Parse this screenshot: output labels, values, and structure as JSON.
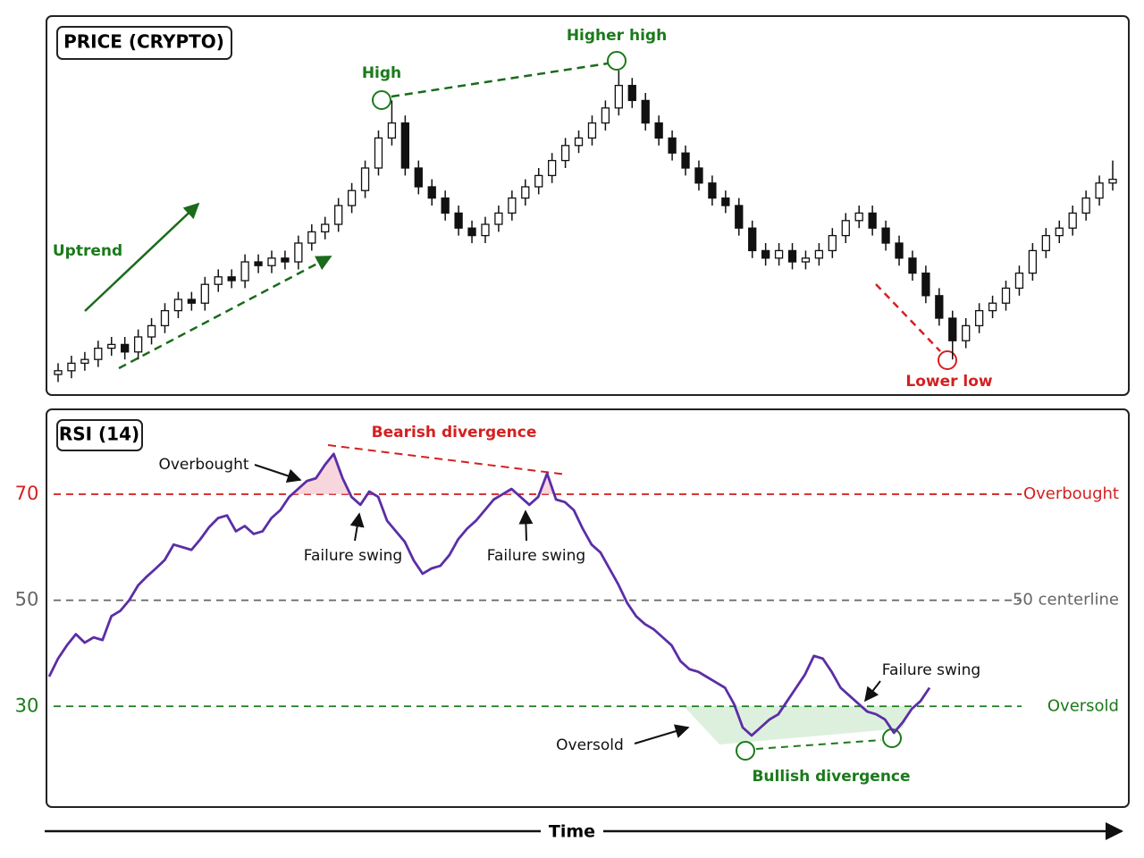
{
  "chart_data": [
    {
      "type": "candlestick",
      "title": "PRICE (CRYPTO)",
      "ylim": [
        0,
        100
      ],
      "up_color": "#ffffff",
      "down_color": "#111111",
      "open": [
        5,
        6,
        8,
        9,
        12,
        13,
        11,
        15,
        18,
        22,
        25,
        24,
        29,
        31,
        30,
        35,
        34,
        36,
        35,
        40,
        43,
        45,
        50,
        54,
        60,
        68,
        72,
        60,
        55,
        52,
        48,
        44,
        42,
        45,
        48,
        52,
        55,
        58,
        62,
        66,
        68,
        72,
        76,
        82,
        78,
        72,
        68,
        64,
        60,
        56,
        52,
        50,
        44,
        38,
        36,
        38,
        35,
        36,
        38,
        42,
        46,
        48,
        44,
        40,
        36,
        32,
        26,
        20,
        14,
        18,
        22,
        24,
        28,
        32,
        38,
        42,
        44,
        48,
        52,
        56
      ],
      "high": [
        8,
        10,
        11,
        14,
        15,
        15,
        17,
        20,
        24,
        27,
        27,
        31,
        33,
        33,
        37,
        37,
        38,
        38,
        42,
        45,
        47,
        52,
        56,
        62,
        70,
        78,
        74,
        62,
        57,
        54,
        50,
        46,
        47,
        50,
        54,
        57,
        60,
        64,
        68,
        70,
        74,
        78,
        86,
        84,
        80,
        74,
        70,
        66,
        62,
        58,
        54,
        52,
        46,
        40,
        40,
        40,
        38,
        40,
        44,
        48,
        50,
        50,
        46,
        42,
        38,
        34,
        28,
        22,
        20,
        24,
        26,
        30,
        34,
        40,
        44,
        46,
        50,
        54,
        58,
        62
      ],
      "low": [
        3,
        4,
        6,
        7,
        10,
        9,
        9,
        13,
        16,
        20,
        22,
        22,
        27,
        28,
        28,
        32,
        32,
        33,
        33,
        38,
        41,
        43,
        48,
        52,
        58,
        66,
        58,
        53,
        50,
        46,
        42,
        40,
        40,
        43,
        46,
        50,
        53,
        56,
        60,
        64,
        66,
        70,
        74,
        76,
        70,
        66,
        62,
        58,
        54,
        50,
        48,
        42,
        36,
        34,
        34,
        33,
        33,
        34,
        36,
        40,
        44,
        42,
        38,
        34,
        30,
        24,
        18,
        9,
        12,
        16,
        20,
        22,
        26,
        30,
        36,
        40,
        42,
        46,
        50,
        54
      ],
      "close": [
        6,
        8,
        9,
        12,
        13,
        11,
        15,
        18,
        22,
        25,
        24,
        29,
        31,
        30,
        35,
        34,
        36,
        35,
        40,
        43,
        45,
        50,
        54,
        60,
        68,
        72,
        60,
        55,
        52,
        48,
        44,
        42,
        45,
        48,
        52,
        55,
        58,
        62,
        66,
        68,
        72,
        76,
        82,
        78,
        72,
        68,
        64,
        60,
        56,
        52,
        50,
        44,
        38,
        36,
        38,
        35,
        36,
        38,
        42,
        46,
        48,
        44,
        40,
        36,
        32,
        26,
        20,
        14,
        18,
        22,
        24,
        28,
        32,
        38,
        42,
        44,
        48,
        52,
        56,
        57
      ],
      "annotations": {
        "high": "High",
        "higher_high": "Higher high",
        "uptrend": "Uptrend",
        "lower_low": "Lower low"
      }
    },
    {
      "type": "line",
      "title": "RSI (14)",
      "color": "#5b2ea6",
      "ylim": [
        11,
        86
      ],
      "yticks": [
        30,
        50,
        70
      ],
      "tick_colors": [
        "#1a7a1a",
        "#666666",
        "#d42020"
      ],
      "line_labels": [
        "Oversold",
        "50 centerline",
        "Overbought"
      ],
      "values": [
        35.6,
        39,
        41.5,
        43.6,
        42,
        43,
        42.5,
        47,
        48,
        50,
        52.8,
        54.5,
        56,
        57.6,
        60.5,
        60,
        59.5,
        61.5,
        63.8,
        65.5,
        66,
        63,
        64,
        62.5,
        63,
        65.5,
        67,
        69.5,
        71,
        72.5,
        73,
        75.5,
        77.6,
        73,
        69.5,
        68,
        70.5,
        69.5,
        65,
        63,
        61,
        57.5,
        55,
        56,
        56.5,
        58.5,
        61.5,
        63.5,
        65,
        67,
        69,
        70,
        71,
        69.5,
        68,
        69.5,
        73.9,
        69,
        68.5,
        67,
        63.5,
        60.5,
        59,
        56,
        53,
        49.5,
        47,
        45.5,
        44.5,
        43,
        41.5,
        38.5,
        37,
        36.5,
        35.5,
        34.5,
        33.5,
        30.5,
        26,
        24.5,
        26,
        27.5,
        28.5,
        31,
        33.5,
        36,
        39.5,
        39,
        36.5,
        33.5,
        32,
        30.5,
        29,
        28.5,
        27.5,
        25,
        27,
        29.5,
        31,
        33.5
      ],
      "annotations": {
        "bearish": "Bearish divergence",
        "overbought": "Overbought",
        "failure1": "Failure swing",
        "failure2": "Failure swing",
        "failure3": "Failure swing",
        "oversold": "Oversold",
        "bullish": "Bullish divergence"
      },
      "xlabel": "Time"
    }
  ]
}
